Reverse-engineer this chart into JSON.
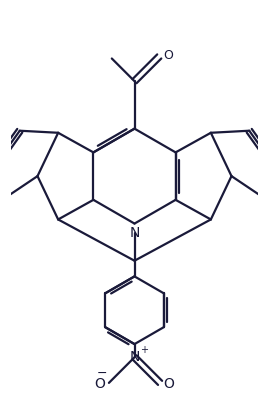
{
  "bg_color": "#ffffff",
  "line_color": "#1a1a3a",
  "line_width": 1.6,
  "figsize": [
    2.69,
    3.95
  ],
  "dpi": 100,
  "xlim": [
    -3.0,
    3.0
  ],
  "ylim": [
    -5.2,
    4.2
  ]
}
